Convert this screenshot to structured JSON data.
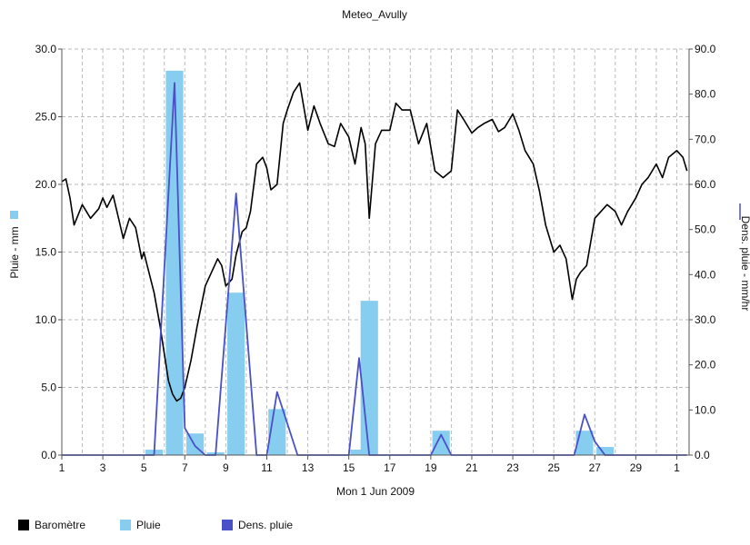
{
  "chart_data": {
    "type": "bar",
    "title": "Meteo_Avully",
    "xlabel": "Mon 1 Jun 2009",
    "ylabel_left": "Pluie - mm",
    "ylabel_right": "Dens. pluie - mm/hr",
    "x_tick_labels": [
      "1",
      "3",
      "5",
      "7",
      "9",
      "11",
      "13",
      "15",
      "17",
      "19",
      "21",
      "23",
      "25",
      "27",
      "29",
      "1"
    ],
    "x_tick_days": [
      1,
      3,
      5,
      7,
      9,
      11,
      13,
      15,
      17,
      19,
      21,
      23,
      25,
      27,
      29,
      31
    ],
    "x_range": [
      1,
      31.6
    ],
    "y_left_range": [
      0,
      30
    ],
    "y_left_ticks": [
      "0.0",
      "5.0",
      "10.0",
      "15.0",
      "20.0",
      "25.0",
      "30.0"
    ],
    "y_right_range": [
      0,
      90
    ],
    "y_right_ticks": [
      "0.0",
      "10.0",
      "20.0",
      "30.0",
      "40.0",
      "50.0",
      "60.0",
      "70.0",
      "80.0",
      "90.0"
    ],
    "grid": true,
    "legend_position": "bottom",
    "legend": [
      "Baromètre",
      "Pluie",
      "Dens. pluie"
    ],
    "colors": {
      "barometre": "#000000",
      "pluie": "#87cdf0",
      "dens_pluie": "#4a50c8",
      "grid": "#bbbbbb"
    },
    "series": [
      {
        "name": "Pluie",
        "type": "bar",
        "axis": "left",
        "x": [
          5.5,
          6.5,
          7.5,
          8.5,
          9.5,
          11.5,
          15.5,
          16.0,
          19.5,
          26.5,
          27.5
        ],
        "values": [
          0.4,
          28.4,
          1.6,
          0.2,
          12.0,
          3.4,
          0.4,
          11.4,
          1.8,
          1.8,
          0.6
        ]
      },
      {
        "name": "Dens. pluie",
        "type": "line",
        "axis": "right",
        "x": [
          1,
          5,
          5.5,
          6.5,
          7.0,
          7.5,
          8.0,
          8.5,
          9.5,
          10.5,
          11.0,
          11.5,
          12.5,
          13.5,
          14.5,
          15.0,
          15.5,
          16.0,
          16.5,
          18.5,
          19.0,
          19.5,
          20.0,
          20.5,
          26.0,
          26.5,
          27.0,
          27.5,
          28.5,
          31.5
        ],
        "values": [
          0,
          0,
          0,
          82.5,
          6,
          2,
          0,
          0,
          58,
          0,
          0,
          14,
          0,
          0,
          0,
          0,
          21.5,
          0,
          0,
          0,
          0,
          4.5,
          0,
          0,
          0,
          9,
          3,
          0,
          0,
          0
        ]
      },
      {
        "name": "Baromètre",
        "type": "line",
        "axis": "left",
        "x": [
          1,
          1.2,
          1.4,
          1.6,
          2.0,
          2.4,
          2.8,
          3.0,
          3.2,
          3.5,
          3.8,
          4.0,
          4.3,
          4.6,
          4.9,
          5.0,
          5.2,
          5.5,
          5.8,
          6.0,
          6.2,
          6.4,
          6.6,
          6.8,
          7.0,
          7.3,
          7.6,
          8.0,
          8.3,
          8.6,
          8.8,
          9.0,
          9.3,
          9.5,
          9.8,
          10.0,
          10.2,
          10.5,
          10.8,
          11.0,
          11.2,
          11.5,
          11.8,
          12.0,
          12.3,
          12.6,
          13.0,
          13.3,
          13.6,
          14.0,
          14.3,
          14.6,
          15.0,
          15.3,
          15.6,
          15.8,
          16.0,
          16.3,
          16.6,
          17.0,
          17.3,
          17.6,
          18.0,
          18.4,
          18.8,
          19.2,
          19.6,
          20.0,
          20.3,
          20.6,
          21.0,
          21.3,
          21.6,
          22.0,
          22.3,
          22.6,
          23.0,
          23.3,
          23.6,
          24.0,
          24.3,
          24.6,
          25.0,
          25.3,
          25.6,
          25.9,
          26.1,
          26.3,
          26.6,
          27.0,
          27.3,
          27.6,
          28.0,
          28.3,
          28.6,
          29.0,
          29.3,
          29.6,
          30.0,
          30.3,
          30.6,
          31.0,
          31.3,
          31.5
        ],
        "values": [
          20.2,
          20.4,
          19.0,
          17.0,
          18.5,
          17.5,
          18.2,
          19.0,
          18.3,
          19.2,
          17.3,
          16.0,
          17.5,
          16.8,
          14.5,
          15.0,
          13.8,
          12.0,
          9.5,
          7.5,
          5.5,
          4.5,
          4.0,
          4.2,
          5.0,
          7.0,
          9.5,
          12.5,
          13.5,
          14.5,
          14.0,
          12.5,
          13.0,
          14.8,
          16.5,
          16.8,
          18.0,
          21.5,
          22.0,
          21.2,
          19.6,
          20.0,
          24.5,
          25.5,
          26.8,
          27.5,
          24.0,
          25.8,
          24.5,
          23.0,
          22.8,
          24.5,
          23.5,
          21.5,
          24.2,
          23.0,
          17.5,
          23.0,
          24.0,
          24.0,
          26.0,
          25.5,
          25.5,
          23.0,
          24.5,
          21.0,
          20.5,
          21.0,
          25.5,
          24.8,
          23.8,
          24.2,
          24.5,
          24.8,
          23.9,
          24.2,
          25.2,
          24.0,
          22.5,
          21.5,
          19.5,
          17.0,
          15.0,
          15.5,
          14.5,
          11.5,
          13.0,
          13.5,
          14.0,
          17.5,
          18.0,
          18.5,
          18.0,
          17.0,
          18.0,
          19.0,
          20.0,
          20.5,
          21.5,
          20.5,
          22.0,
          22.5,
          22.0,
          21.0
        ]
      }
    ]
  }
}
